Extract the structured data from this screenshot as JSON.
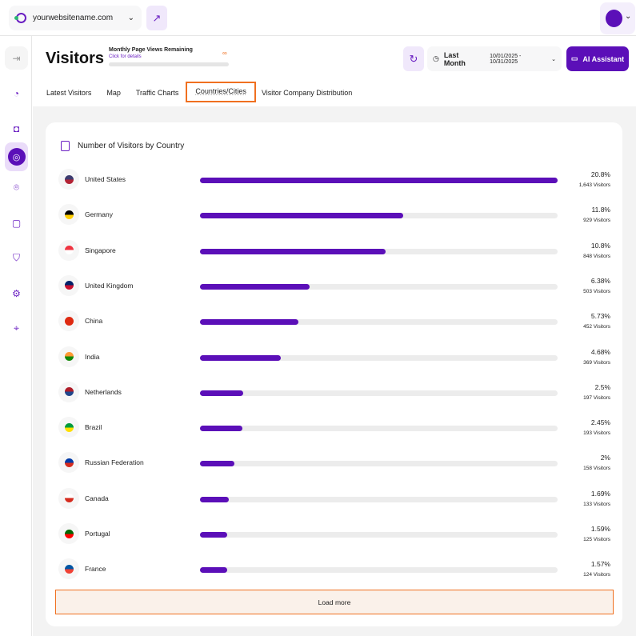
{
  "header": {
    "site": "yourwebsitename.com"
  },
  "page": {
    "title": "Visitors",
    "page_views_label": "Monthly Page Views Remaining",
    "page_views_link": "Click for details",
    "page_views_value": "∞",
    "range_label": "Last Month",
    "range_dates": "10/01/2025 - 10/31/2025",
    "ai_button": "AI Assistant"
  },
  "tabs": [
    {
      "label": "Latest Visitors"
    },
    {
      "label": "Map"
    },
    {
      "label": "Traffic Charts"
    },
    {
      "label": "Countries/Cities",
      "active": true
    },
    {
      "label": "Visitor Company Distribution"
    }
  ],
  "card": {
    "title": "Number of Visitors by Country",
    "load_more": "Load more"
  },
  "colors": {
    "accent": "#5b0fb8",
    "highlight": "#f07020"
  },
  "countries": [
    {
      "name": "United States",
      "percent": "20.8%",
      "visitors": "1,643 Visitors",
      "value": 20.8,
      "flag": [
        "#3c3b6e",
        "#b22234"
      ]
    },
    {
      "name": "Germany",
      "percent": "11.8%",
      "visitors": "929 Visitors",
      "value": 11.8,
      "flag": [
        "#000",
        "#ffce00"
      ]
    },
    {
      "name": "Singapore",
      "percent": "10.8%",
      "visitors": "848 Visitors",
      "value": 10.8,
      "flag": [
        "#ef3340",
        "#fff"
      ]
    },
    {
      "name": "United Kingdom",
      "percent": "6.38%",
      "visitors": "503 Visitors",
      "value": 6.38,
      "flag": [
        "#012169",
        "#c8102e"
      ]
    },
    {
      "name": "China",
      "percent": "5.73%",
      "visitors": "452 Visitors",
      "value": 5.73,
      "flag": [
        "#de2910",
        "#de2910"
      ]
    },
    {
      "name": "India",
      "percent": "4.68%",
      "visitors": "369 Visitors",
      "value": 4.68,
      "flag": [
        "#ff9933",
        "#138808"
      ]
    },
    {
      "name": "Netherlands",
      "percent": "2.5%",
      "visitors": "197 Visitors",
      "value": 2.5,
      "flag": [
        "#ae1c28",
        "#21468b"
      ]
    },
    {
      "name": "Brazil",
      "percent": "2.45%",
      "visitors": "193 Visitors",
      "value": 2.45,
      "flag": [
        "#009c3b",
        "#ffdf00"
      ]
    },
    {
      "name": "Russian Federation",
      "percent": "2%",
      "visitors": "158 Visitors",
      "value": 2,
      "flag": [
        "#0039a6",
        "#d52b1e"
      ]
    },
    {
      "name": "Canada",
      "percent": "1.69%",
      "visitors": "133 Visitors",
      "value": 1.69,
      "flag": [
        "#fff",
        "#d52b1e"
      ]
    },
    {
      "name": "Portugal",
      "percent": "1.59%",
      "visitors": "125 Visitors",
      "value": 1.59,
      "flag": [
        "#006600",
        "#ff0000"
      ]
    },
    {
      "name": "France",
      "percent": "1.57%",
      "visitors": "124 Visitors",
      "value": 1.57,
      "flag": [
        "#0055a4",
        "#ef4135"
      ]
    }
  ]
}
